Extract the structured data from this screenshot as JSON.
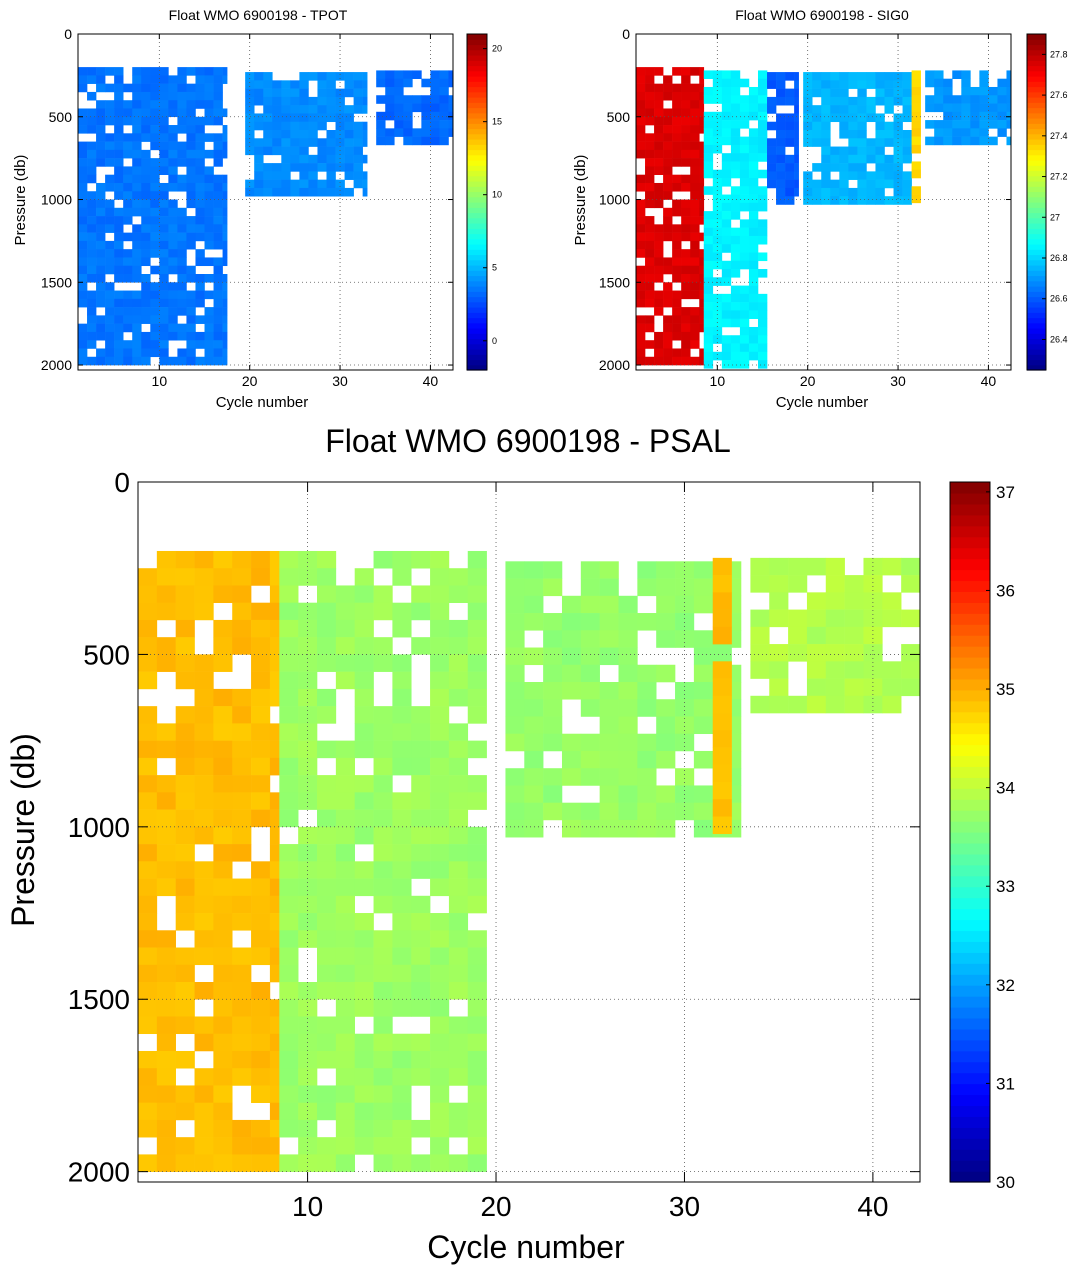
{
  "chart_data": [
    {
      "id": "tpot",
      "type": "heatmap",
      "title": "Float WMO 6900198 - TPOT",
      "xlabel": "Cycle number",
      "ylabel": "Pressure (db)",
      "xlim": [
        1,
        42.5
      ],
      "ylim": [
        0,
        2030
      ],
      "x_ticks": [
        10,
        20,
        30,
        40
      ],
      "y_ticks": [
        0,
        500,
        1000,
        1500,
        2000
      ],
      "grid": true,
      "colorbar": {
        "min": -2,
        "max": 21,
        "ticks": [
          0,
          5,
          10,
          15,
          20
        ]
      },
      "columns": [
        {
          "x_range": [
            1,
            17.5
          ],
          "p_range": [
            200,
            2000
          ],
          "value": 3.5
        },
        {
          "x_range": [
            19.5,
            33
          ],
          "p_range": [
            230,
            960
          ],
          "value": 4.0
        },
        {
          "x_range": [
            34,
            42.5
          ],
          "p_range": [
            220,
            660
          ],
          "value": 3.2
        }
      ]
    },
    {
      "id": "sig0",
      "type": "heatmap",
      "title": "Float WMO 6900198 - SIG0",
      "xlabel": "Cycle number",
      "ylabel": "Pressure (db)",
      "xlim": [
        1,
        42.5
      ],
      "ylim": [
        0,
        2030
      ],
      "x_ticks": [
        10,
        20,
        30,
        40
      ],
      "y_ticks": [
        0,
        500,
        1000,
        1500,
        2000
      ],
      "grid": true,
      "colorbar": {
        "min": 26.25,
        "max": 27.9,
        "ticks": [
          26.4,
          26.6,
          26.8,
          27,
          27.2,
          27.4,
          27.6,
          27.8
        ]
      },
      "columns": [
        {
          "x_range": [
            1,
            8.5
          ],
          "p_range": [
            200,
            2000
          ],
          "value": 27.75
        },
        {
          "x_range": [
            8.5,
            15.5
          ],
          "p_range": [
            220,
            2000
          ],
          "value": 26.85
        },
        {
          "x_range": [
            15.5,
            19
          ],
          "p_range": [
            230,
            1000
          ],
          "value": 26.6
        },
        {
          "x_range": [
            19.5,
            31.5
          ],
          "p_range": [
            230,
            1000
          ],
          "value": 26.75
        },
        {
          "x_range": [
            31.5,
            32.5
          ],
          "p_range": [
            220,
            1000
          ],
          "value": 27.35
        },
        {
          "x_range": [
            33,
            42.5
          ],
          "p_range": [
            220,
            660
          ],
          "value": 26.7
        }
      ]
    },
    {
      "id": "psal",
      "type": "heatmap",
      "title": "Float WMO 6900198 - PSAL",
      "xlabel": "Cycle number",
      "ylabel": "Pressure (db)",
      "xlim": [
        1,
        42.5
      ],
      "ylim": [
        0,
        2030
      ],
      "x_ticks": [
        10,
        20,
        30,
        40
      ],
      "y_ticks": [
        0,
        500,
        1000,
        1500,
        2000
      ],
      "grid": true,
      "colorbar": {
        "min": 30,
        "max": 37.1,
        "ticks": [
          30,
          31,
          32,
          33,
          34,
          35,
          36,
          37
        ]
      },
      "columns": [
        {
          "x_range": [
            1,
            8.5
          ],
          "p_range": [
            200,
            2000
          ],
          "value": 34.9
        },
        {
          "x_range": [
            8.5,
            19.5
          ],
          "p_range": [
            200,
            2000
          ],
          "value": 33.75
        },
        {
          "x_range": [
            20.5,
            33
          ],
          "p_range": [
            230,
            1000
          ],
          "value": 33.7
        },
        {
          "x_range": [
            31.5,
            32.5
          ],
          "p_range": [
            220,
            1000
          ],
          "value": 34.9
        },
        {
          "x_range": [
            33.5,
            42.5
          ],
          "p_range": [
            220,
            660
          ],
          "value": 33.9
        }
      ]
    }
  ]
}
